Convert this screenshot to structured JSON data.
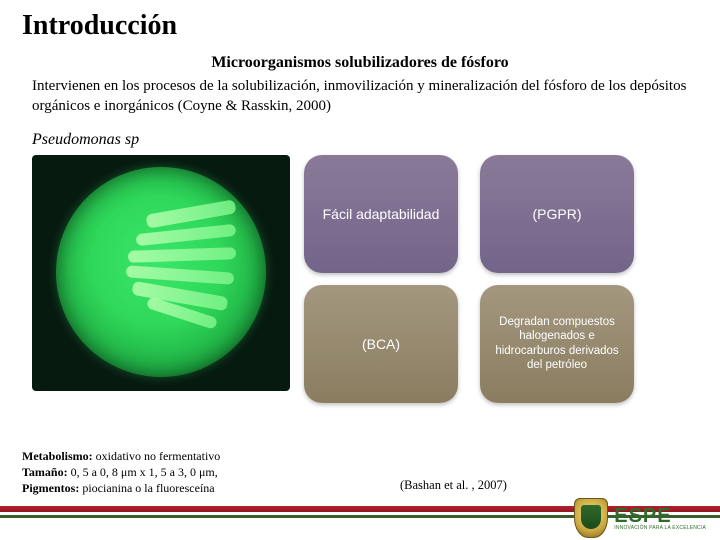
{
  "title": "Introducción",
  "subtitle": "Microorganismos solubilizadores de fósforo",
  "intro": "Intervienen en los procesos de la solubilización, inmovilización y mineralización del fósforo de los depósitos orgánicos e inorgánicos (Coyne & Rasskin, 2000)",
  "species": "Pseudomonas sp",
  "boxes": {
    "tl": "Fácil adaptabilidad",
    "tr": "(PGPR)",
    "bl": "(BCA)",
    "br": "Degradan compuestos halogenados e hidrocarburos derivados del petróleo"
  },
  "meta": {
    "line1_label": "Metabolismo:",
    "line1_value": " oxidativo no fermentativo",
    "line2_label": "Tamaño:",
    "line2_value": " 0, 5 a 0, 8 μm x 1, 5 a 3, 0 μm,",
    "line3_label": "Pigmentos:",
    "line3_value": " piocianina o la fluoresceína"
  },
  "citation": "(Bashan et al. , 2007)",
  "logo": {
    "name": "ESPE",
    "tagline": "INNOVACIÓN PARA LA EXCELENCIA"
  },
  "colors": {
    "box_top": "#73648a",
    "box_bottom": "#8a7d60",
    "stripe_red": "#8f1923",
    "stripe_green": "#3a5e2b",
    "petri_bg": "#071a10",
    "petri_green": "#2fd85a"
  }
}
